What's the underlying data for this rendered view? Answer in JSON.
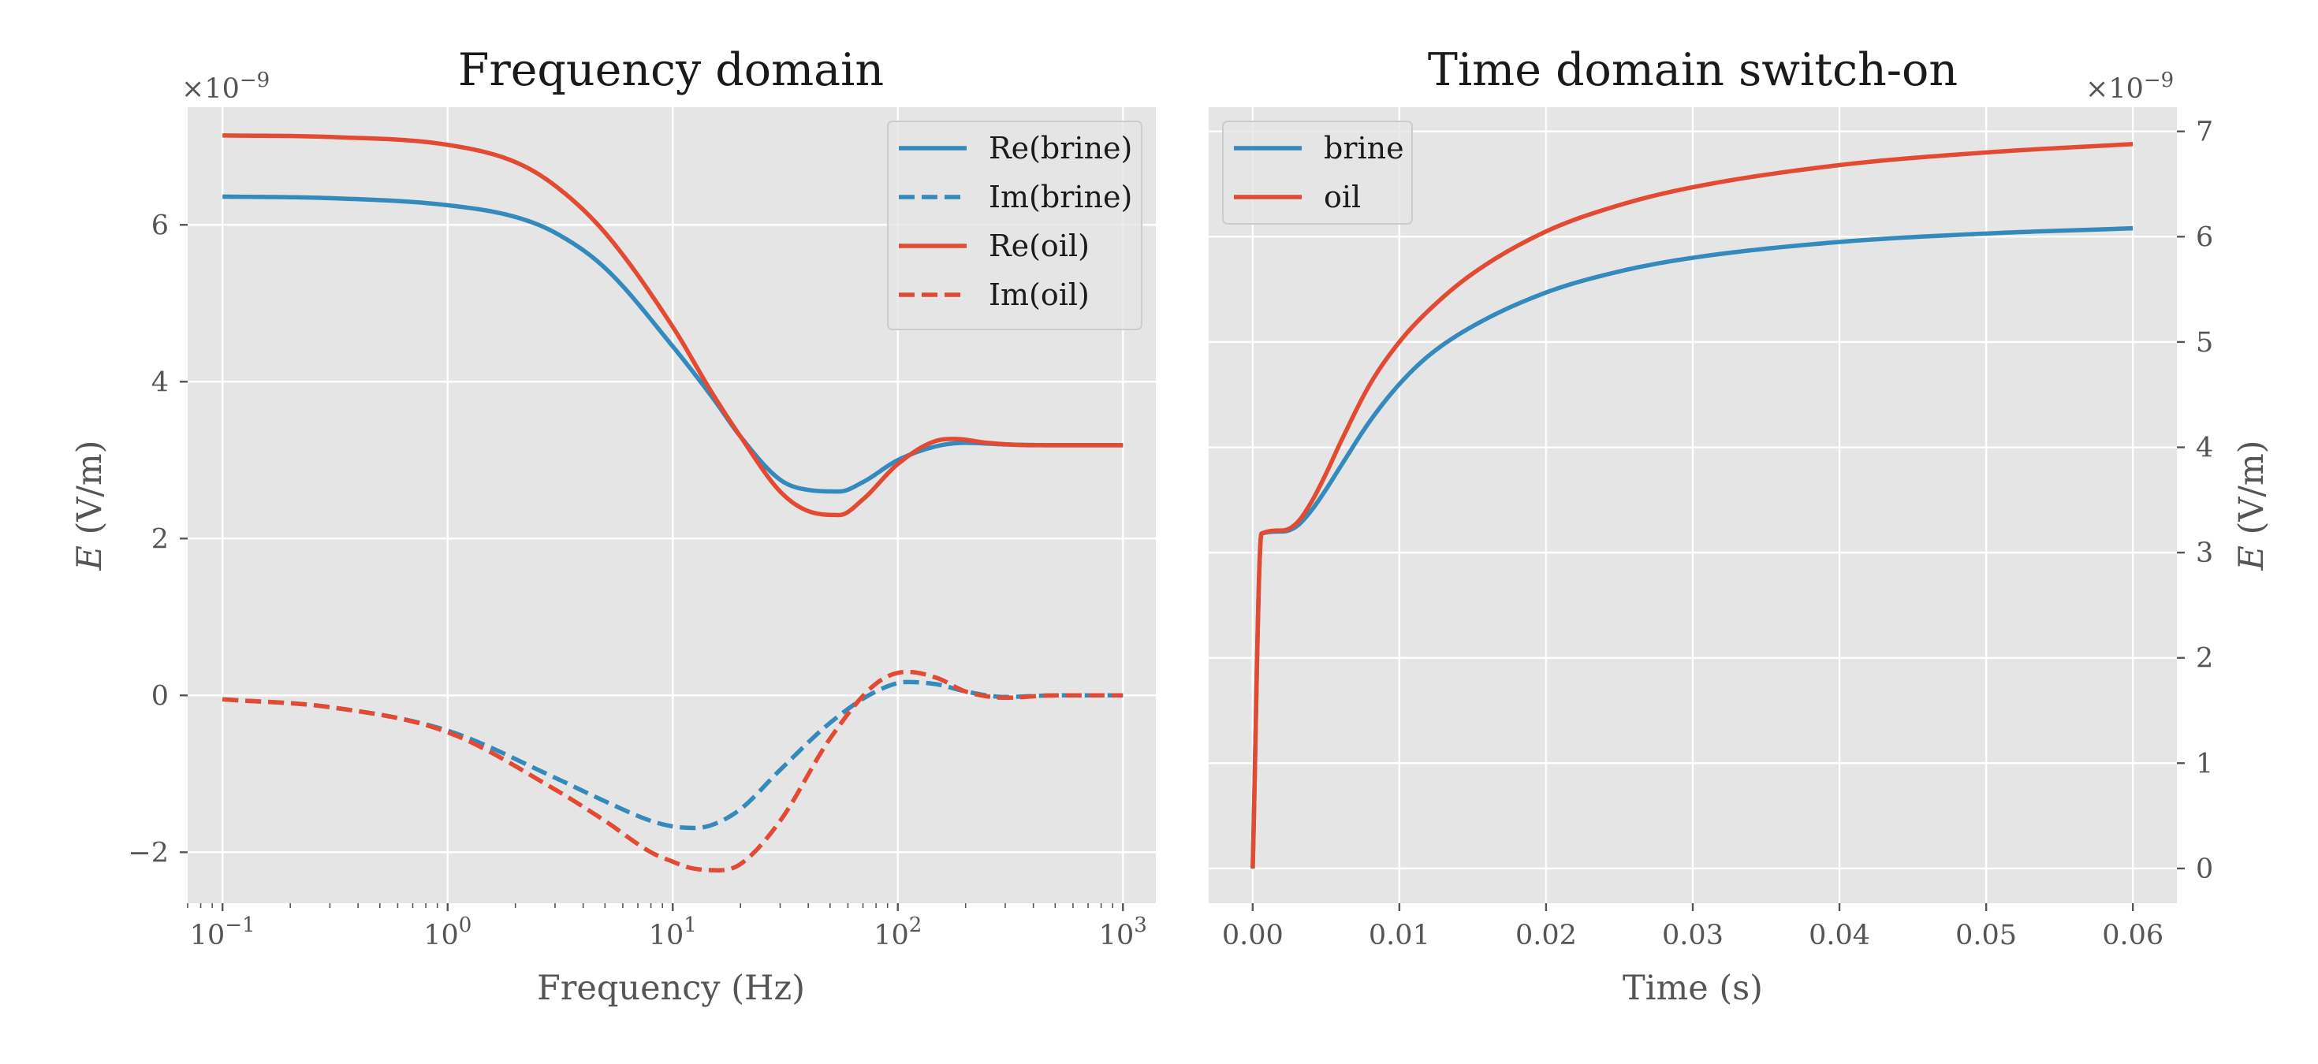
{
  "chart_data": [
    {
      "type": "line",
      "title": "Frequency domain",
      "xlabel": "Frequency (Hz)",
      "ylabel_var": "E",
      "ylabel_unit": " (V/m)",
      "offset_label": "×10",
      "offset_exp": "−9",
      "xscale": "log",
      "xlim": [
        0.07,
        1400
      ],
      "ylim": [
        -2.65,
        7.5
      ],
      "x_ticks": [
        {
          "value": 0.1,
          "base": "10",
          "exp": "−1"
        },
        {
          "value": 1,
          "base": "10",
          "exp": "0"
        },
        {
          "value": 10,
          "base": "10",
          "exp": "1"
        },
        {
          "value": 100,
          "base": "10",
          "exp": "2"
        },
        {
          "value": 1000,
          "base": "10",
          "exp": "3"
        }
      ],
      "y_ticks": [
        {
          "value": -2,
          "label": "−2"
        },
        {
          "value": 0,
          "label": "0"
        },
        {
          "value": 2,
          "label": "2"
        },
        {
          "value": 4,
          "label": "4"
        },
        {
          "value": 6,
          "label": "6"
        }
      ],
      "grid": true,
      "legend_position": "top-right",
      "series": [
        {
          "name": "Re(brine)",
          "color": "#348abd",
          "style": "solid",
          "x": [
            0.1,
            0.3,
            1,
            2,
            3,
            5,
            10,
            15,
            20,
            30,
            40,
            55,
            70,
            100,
            150,
            200,
            300,
            500,
            1000
          ],
          "y": [
            6.36,
            6.34,
            6.25,
            6.1,
            5.9,
            5.45,
            4.45,
            3.8,
            3.3,
            2.75,
            2.62,
            2.6,
            2.72,
            3.0,
            3.18,
            3.22,
            3.2,
            3.19,
            3.19
          ]
        },
        {
          "name": "Im(brine)",
          "color": "#348abd",
          "style": "dashed",
          "x": [
            0.1,
            0.3,
            1,
            3,
            5,
            8,
            10,
            12.5,
            15,
            20,
            30,
            50,
            80,
            110,
            150,
            200,
            300,
            500,
            1000
          ],
          "y": [
            -0.05,
            -0.15,
            -0.45,
            -1.05,
            -1.35,
            -1.6,
            -1.67,
            -1.69,
            -1.65,
            -1.45,
            -0.95,
            -0.35,
            0.05,
            0.17,
            0.14,
            0.05,
            -0.02,
            0.0,
            0.0
          ]
        },
        {
          "name": "Re(oil)",
          "color": "#e24a33",
          "style": "solid",
          "x": [
            0.1,
            0.3,
            1,
            2,
            3,
            5,
            10,
            15,
            20,
            30,
            40,
            55,
            70,
            100,
            150,
            180,
            250,
            400,
            1000
          ],
          "y": [
            7.14,
            7.12,
            7.02,
            6.8,
            6.5,
            5.9,
            4.7,
            3.85,
            3.3,
            2.6,
            2.35,
            2.3,
            2.5,
            2.95,
            3.25,
            3.27,
            3.22,
            3.19,
            3.19
          ]
        },
        {
          "name": "Im(oil)",
          "color": "#e24a33",
          "style": "dashed",
          "x": [
            0.1,
            0.3,
            1,
            3,
            5,
            8,
            10,
            12,
            16,
            20,
            30,
            50,
            80,
            110,
            150,
            200,
            300,
            500,
            1000
          ],
          "y": [
            -0.05,
            -0.15,
            -0.47,
            -1.2,
            -1.6,
            -2.0,
            -2.12,
            -2.2,
            -2.23,
            -2.15,
            -1.6,
            -0.55,
            0.15,
            0.3,
            0.22,
            0.05,
            -0.03,
            0.0,
            0.0
          ]
        }
      ]
    },
    {
      "type": "line",
      "title": "Time domain switch-on",
      "xlabel": "Time (s)",
      "ylabel_var": "E",
      "ylabel_unit": " (V/m)",
      "offset_label": "×10",
      "offset_exp": "−9",
      "yaxis_side": "right",
      "xlim": [
        -0.003,
        0.063
      ],
      "ylim": [
        -0.33,
        7.23
      ],
      "x_ticks": [
        {
          "value": 0.0,
          "label": "0.00"
        },
        {
          "value": 0.01,
          "label": "0.01"
        },
        {
          "value": 0.02,
          "label": "0.02"
        },
        {
          "value": 0.03,
          "label": "0.03"
        },
        {
          "value": 0.04,
          "label": "0.04"
        },
        {
          "value": 0.05,
          "label": "0.05"
        },
        {
          "value": 0.06,
          "label": "0.06"
        }
      ],
      "y_ticks": [
        {
          "value": 0,
          "label": "0"
        },
        {
          "value": 1,
          "label": "1"
        },
        {
          "value": 2,
          "label": "2"
        },
        {
          "value": 3,
          "label": "3"
        },
        {
          "value": 4,
          "label": "4"
        },
        {
          "value": 5,
          "label": "5"
        },
        {
          "value": 6,
          "label": "6"
        },
        {
          "value": 7,
          "label": "7"
        }
      ],
      "grid": true,
      "legend_position": "top-left",
      "series": [
        {
          "name": "brine",
          "color": "#348abd",
          "style": "solid",
          "x": [
            0.0,
            0.0006,
            0.002,
            0.003,
            0.004,
            0.005,
            0.006,
            0.008,
            0.01,
            0.012,
            0.015,
            0.02,
            0.025,
            0.03,
            0.04,
            0.05,
            0.06
          ],
          "y": [
            0.0,
            3.18,
            3.2,
            3.25,
            3.4,
            3.6,
            3.82,
            4.25,
            4.6,
            4.87,
            5.15,
            5.47,
            5.67,
            5.8,
            5.95,
            6.03,
            6.08
          ]
        },
        {
          "name": "oil",
          "color": "#e24a33",
          "style": "solid",
          "x": [
            0.0,
            0.0006,
            0.002,
            0.003,
            0.004,
            0.005,
            0.006,
            0.008,
            0.01,
            0.012,
            0.015,
            0.02,
            0.025,
            0.03,
            0.04,
            0.05,
            0.06
          ],
          "y": [
            0.0,
            3.18,
            3.21,
            3.28,
            3.48,
            3.75,
            4.05,
            4.6,
            5.0,
            5.3,
            5.65,
            6.05,
            6.3,
            6.47,
            6.68,
            6.8,
            6.88
          ]
        }
      ]
    }
  ]
}
